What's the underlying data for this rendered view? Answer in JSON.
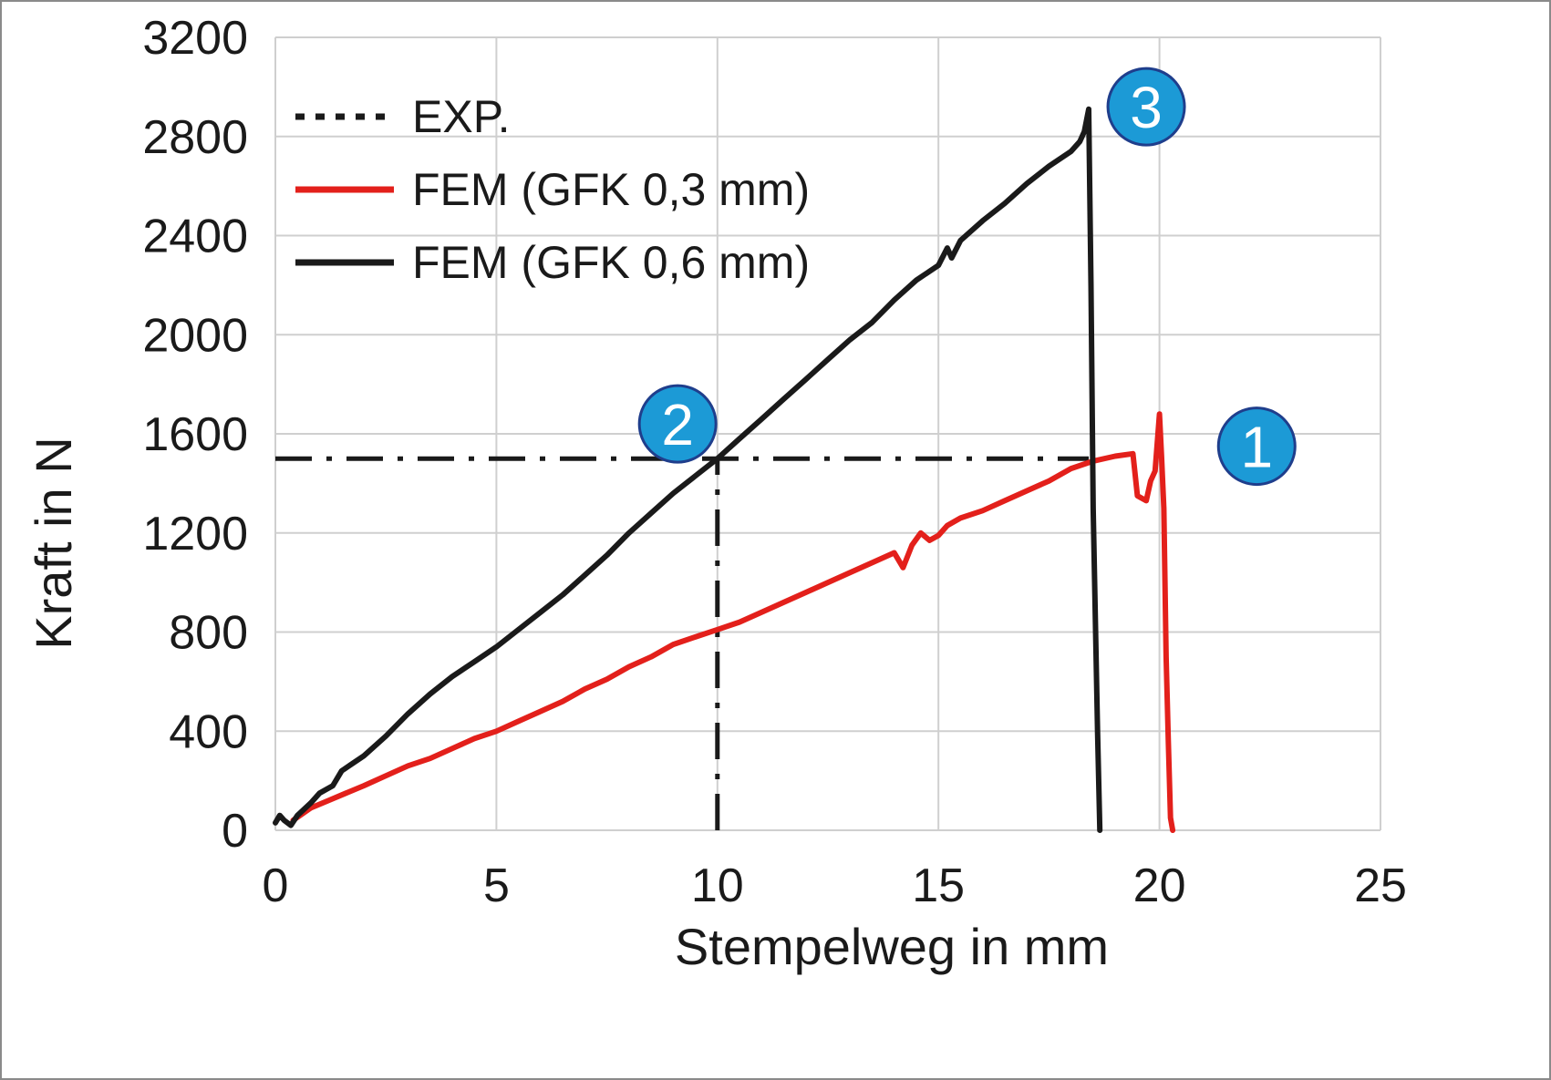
{
  "chart_data": {
    "type": "line",
    "xlabel": "Stempelweg in mm",
    "ylabel": "Kraft in N",
    "xlim": [
      0,
      25
    ],
    "ylim": [
      0,
      3200
    ],
    "xticks": [
      "0",
      "5",
      "10",
      "15",
      "20",
      "25"
    ],
    "yticks": [
      "0",
      "400",
      "800",
      "1200",
      "1600",
      "2000",
      "2400",
      "2800",
      "3200"
    ],
    "grid": true,
    "legend_position": "top-left",
    "series": [
      {
        "name": "EXP.",
        "style": "dash-dot",
        "color": "#1a1a1a",
        "horizontal": {
          "x": [
            0,
            18.4
          ],
          "y": [
            1500,
            1500
          ]
        },
        "vertical": {
          "x": [
            10,
            10
          ],
          "y": [
            0,
            1500
          ]
        }
      },
      {
        "name": "FEM (GFK 0,3 mm)",
        "color": "#e3201b",
        "x": [
          0.4,
          0.8,
          1.2,
          1.6,
          2.0,
          2.5,
          3.0,
          3.5,
          4.0,
          4.5,
          5.0,
          5.5,
          6.0,
          6.5,
          7.0,
          7.5,
          8.0,
          8.5,
          9.0,
          9.5,
          10.0,
          10.5,
          11.0,
          11.5,
          12.0,
          12.5,
          13.0,
          13.5,
          14.0,
          14.2,
          14.4,
          14.6,
          14.8,
          15.0,
          15.2,
          15.5,
          16.0,
          16.5,
          17.0,
          17.5,
          18.0,
          18.5,
          19.0,
          19.4,
          19.5,
          19.7,
          19.8,
          19.9,
          20.0,
          20.05,
          20.1,
          20.15,
          20.2,
          20.25,
          20.3
        ],
        "y": [
          40,
          90,
          120,
          150,
          180,
          220,
          260,
          290,
          330,
          370,
          400,
          440,
          480,
          520,
          570,
          610,
          660,
          700,
          750,
          780,
          810,
          840,
          880,
          920,
          960,
          1000,
          1040,
          1080,
          1120,
          1060,
          1150,
          1200,
          1170,
          1190,
          1230,
          1260,
          1290,
          1330,
          1370,
          1410,
          1460,
          1490,
          1510,
          1520,
          1350,
          1330,
          1410,
          1450,
          1680,
          1500,
          1300,
          700,
          360,
          50,
          0
        ]
      },
      {
        "name": "FEM (GFK 0,6 mm)",
        "color": "#1a1a1a",
        "x": [
          0.0,
          0.1,
          0.2,
          0.35,
          0.5,
          0.8,
          1.0,
          1.3,
          1.5,
          2.0,
          2.5,
          3.0,
          3.5,
          4.0,
          4.5,
          5.0,
          5.5,
          6.0,
          6.5,
          7.0,
          7.5,
          8.0,
          8.5,
          9.0,
          9.5,
          10.0,
          10.5,
          11.0,
          11.5,
          12.0,
          12.5,
          13.0,
          13.5,
          14.0,
          14.5,
          15.0,
          15.2,
          15.3,
          15.5,
          16.0,
          16.5,
          17.0,
          17.5,
          18.0,
          18.2,
          18.3,
          18.4,
          18.45,
          18.5,
          18.6,
          18.65
        ],
        "y": [
          30,
          60,
          40,
          20,
          60,
          110,
          150,
          180,
          240,
          300,
          380,
          470,
          550,
          620,
          680,
          740,
          810,
          880,
          950,
          1030,
          1110,
          1200,
          1280,
          1360,
          1430,
          1500,
          1580,
          1660,
          1740,
          1820,
          1900,
          1980,
          2050,
          2140,
          2220,
          2280,
          2350,
          2310,
          2380,
          2460,
          2530,
          2610,
          2680,
          2740,
          2780,
          2820,
          2910,
          2200,
          1300,
          400,
          0
        ]
      }
    ],
    "annotations": [
      {
        "label": "1",
        "x": 22.2,
        "y": 1550
      },
      {
        "label": "2",
        "x": 9.1,
        "y": 1640
      },
      {
        "label": "3",
        "x": 19.7,
        "y": 2920
      }
    ]
  }
}
